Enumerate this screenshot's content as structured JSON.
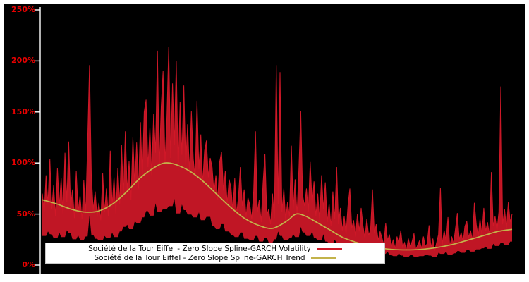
{
  "page": {
    "background": "#ffffff"
  },
  "figure": {
    "background": "#000000",
    "axis_color": "#ffffff"
  },
  "axis": {
    "label_color": "#e60000",
    "y_ticks": [
      {
        "label": "0%",
        "value": 0
      },
      {
        "label": "50%",
        "value": 50
      },
      {
        "label": "100%",
        "value": 100
      },
      {
        "label": "150%",
        "value": 150
      },
      {
        "label": "200%",
        "value": 200
      },
      {
        "label": "250%",
        "value": 250
      }
    ]
  },
  "legend": {
    "background": "#ffffff",
    "entries": [
      {
        "label": "Société de la Tour Eiffel - Zero Slope Spline-GARCH Volatility",
        "color": "#d01828"
      },
      {
        "label": "Société de la Tour Eiffel - Zero Slope Spline-GARCH Trend",
        "color": "#c3b34a"
      }
    ]
  },
  "chart_data": {
    "type": "line",
    "title": "",
    "xlabel": "",
    "ylabel": "",
    "ylim": [
      0,
      250
    ],
    "y_unit": "percent",
    "y_tick_labels": [
      "0%",
      "50%",
      "100%",
      "150%",
      "200%",
      "250%"
    ],
    "x_tick_labels_visible": false,
    "grid": false,
    "background": "#000000",
    "legend_position": "bottom-left",
    "series": [
      {
        "name": "Société de la Tour Eiffel - Zero Slope Spline-GARCH Volatility",
        "color": "#d01828",
        "style": "spiky-daily",
        "values": [
          70,
          52,
          88,
          60,
          104,
          55,
          78,
          48,
          95,
          58,
          85,
          50,
          110,
          62,
          121,
          57,
          74,
          46,
          92,
          53,
          68,
          45,
          83,
          51,
          120,
          196,
          88,
          54,
          72,
          47,
          61,
          44,
          90,
          52,
          75,
          48,
          112,
          58,
          86,
          50,
          95,
          60,
          118,
          68,
          131,
          72,
          102,
          64,
          125,
          78,
          120,
          75,
          140,
          85,
          150,
          162,
          96,
          135,
          88,
          148,
          110,
          210,
          95,
          155,
          190,
          100,
          142,
          214,
          105,
          178,
          118,
          200,
          92,
          160,
          108,
          176,
          98,
          138,
          90,
          151,
          104,
          85,
          161,
          94,
          128,
          80,
          112,
          122,
          86,
          105,
          96,
          70,
          88,
          64,
          101,
          111,
          73,
          92,
          60,
          84,
          76,
          54,
          85,
          50,
          68,
          96,
          58,
          74,
          47,
          66,
          59,
          45,
          72,
          131,
          52,
          64,
          42,
          80,
          109,
          49,
          55,
          40,
          70,
          46,
          196,
          60,
          189,
          52,
          75,
          44,
          62,
          48,
          117,
          55,
          84,
          50,
          95,
          151,
          68,
          58,
          75,
          52,
          101,
          60,
          82,
          48,
          70,
          44,
          88,
          55,
          81,
          42,
          60,
          38,
          72,
          45,
          96,
          40,
          56,
          34,
          48,
          30,
          58,
          75,
          36,
          44,
          28,
          50,
          33,
          56,
          38,
          26,
          45,
          29,
          35,
          74,
          31,
          40,
          24,
          33,
          27,
          20,
          41,
          24,
          30,
          18,
          25,
          16,
          28,
          21,
          34,
          17,
          22,
          14,
          26,
          18,
          23,
          31,
          15,
          20,
          24,
          16,
          28,
          18,
          21,
          39,
          17,
          26,
          14,
          22,
          30,
          76,
          20,
          34,
          24,
          47,
          18,
          28,
          21,
          36,
          51,
          25,
          32,
          22,
          38,
          43,
          27,
          34,
          24,
          61,
          40,
          28,
          45,
          30,
          56,
          33,
          42,
          29,
          91,
          38,
          48,
          34,
          52,
          175,
          40,
          55,
          36,
          62,
          42,
          50
        ]
      },
      {
        "name": "Société de la Tour Eiffel - Zero Slope Spline-GARCH Trend",
        "color": "#c3b34a",
        "style": "smooth",
        "points": [
          [
            0.0,
            64
          ],
          [
            0.03,
            60
          ],
          [
            0.06,
            55
          ],
          [
            0.09,
            52
          ],
          [
            0.12,
            53
          ],
          [
            0.15,
            60
          ],
          [
            0.18,
            72
          ],
          [
            0.21,
            86
          ],
          [
            0.24,
            96
          ],
          [
            0.26,
            100
          ],
          [
            0.28,
            99
          ],
          [
            0.31,
            93
          ],
          [
            0.34,
            83
          ],
          [
            0.37,
            70
          ],
          [
            0.4,
            57
          ],
          [
            0.43,
            46
          ],
          [
            0.46,
            39
          ],
          [
            0.49,
            36
          ],
          [
            0.52,
            43
          ],
          [
            0.54,
            50
          ],
          [
            0.56,
            48
          ],
          [
            0.58,
            43
          ],
          [
            0.61,
            35
          ],
          [
            0.64,
            27
          ],
          [
            0.67,
            22
          ],
          [
            0.7,
            18
          ],
          [
            0.73,
            16
          ],
          [
            0.76,
            15
          ],
          [
            0.79,
            15
          ],
          [
            0.82,
            16
          ],
          [
            0.85,
            18
          ],
          [
            0.88,
            21
          ],
          [
            0.91,
            25
          ],
          [
            0.94,
            29
          ],
          [
            0.97,
            33
          ],
          [
            1.0,
            35
          ]
        ]
      }
    ]
  }
}
